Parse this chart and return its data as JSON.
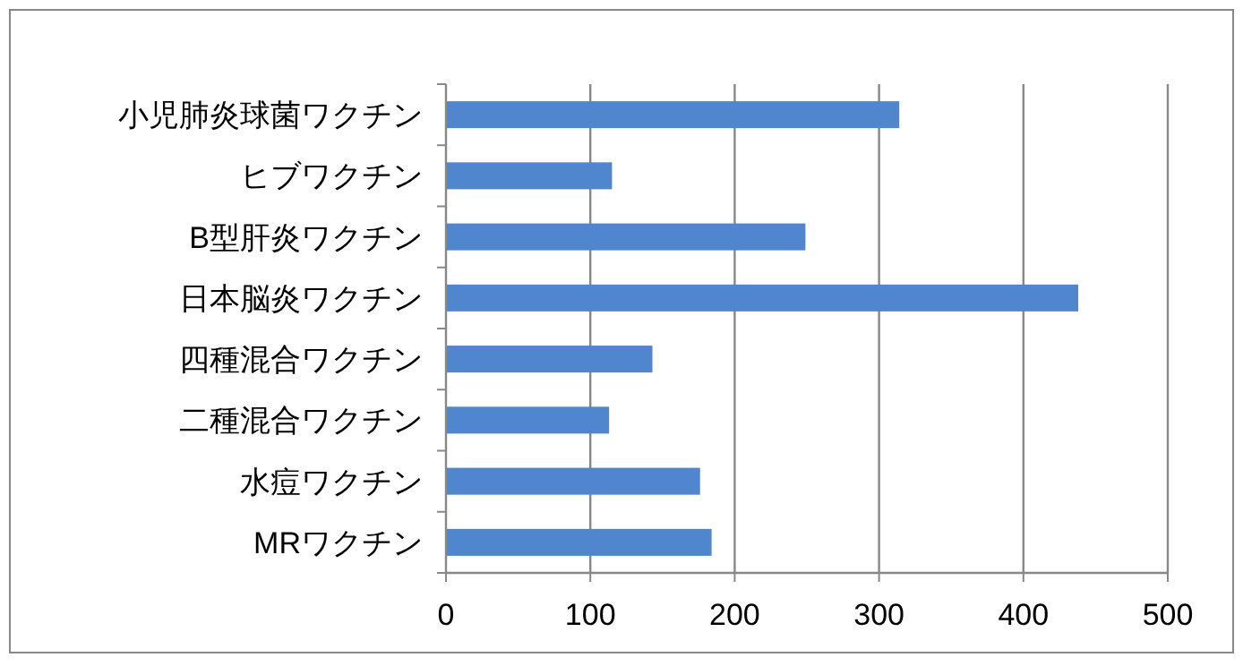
{
  "chart_data": {
    "type": "bar",
    "orientation": "horizontal",
    "categories": [
      "小児肺炎球菌ワクチン",
      "ヒブワクチン",
      "B型肝炎ワクチン",
      "日本脳炎ワクチン",
      "四種混合ワクチン",
      "二種混合ワクチン",
      "水痘ワクチン",
      "MRワクチン"
    ],
    "values": [
      314,
      115,
      249,
      438,
      143,
      113,
      176,
      184
    ],
    "color": "#4f86cd",
    "xlim": [
      0,
      500
    ],
    "xticks": [
      0,
      100,
      200,
      300,
      400,
      500
    ],
    "grid": "x"
  }
}
